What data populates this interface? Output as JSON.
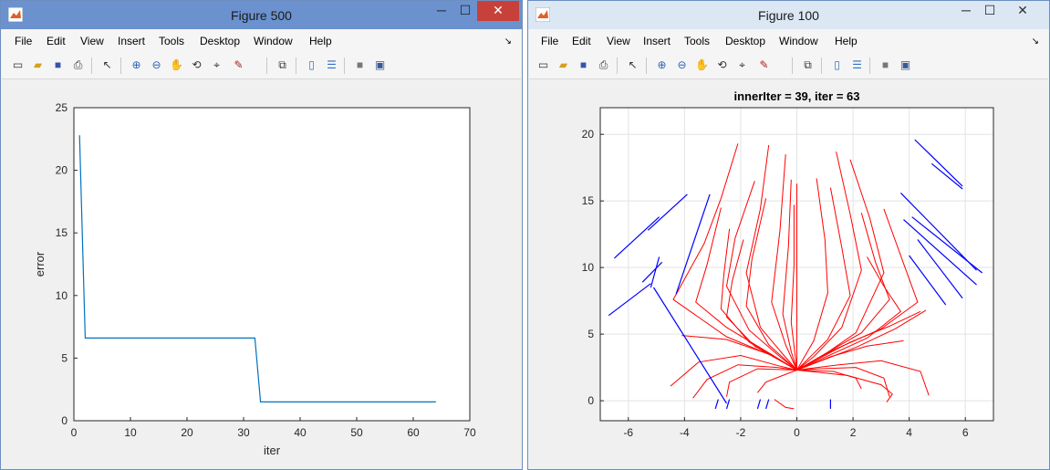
{
  "windows": {
    "left": {
      "title": "Figure 500",
      "menu": [
        "File",
        "Edit",
        "View",
        "Insert",
        "Tools",
        "Desktop",
        "Window",
        "Help"
      ]
    },
    "right": {
      "title": "Figure 100",
      "menu": [
        "File",
        "Edit",
        "View",
        "Insert",
        "Tools",
        "Desktop",
        "Window",
        "Help"
      ]
    }
  },
  "toolbar_icons": [
    "new-figure-icon",
    "open-file-icon",
    "save-icon",
    "print-icon",
    "edit-plot-icon",
    "zoom-in-icon",
    "zoom-out-icon",
    "pan-icon",
    "rotate-3d-icon",
    "data-cursor-icon",
    "brush-icon",
    "link-plot-icon",
    "insert-colorbar-icon",
    "insert-legend-icon",
    "hide-plot-tools-icon",
    "show-plot-tools-icon"
  ],
  "controls": {
    "minimize": "─",
    "maximize": "☐",
    "close": "✕",
    "dock": "↘"
  },
  "colors": {
    "error_line": "#0072bd",
    "red_paths": "#ff0000",
    "blue_segments": "#0000ff",
    "titlebar_active": "#6b92cf",
    "close_button": "#c7413a"
  },
  "chart_data": [
    {
      "type": "line",
      "title": "",
      "xlabel": "iter",
      "ylabel": "error",
      "xlim": [
        0,
        70
      ],
      "ylim": [
        0,
        25
      ],
      "xticks": [
        "0",
        "10",
        "20",
        "30",
        "40",
        "50",
        "60",
        "70"
      ],
      "yticks": [
        "0",
        "5",
        "10",
        "15",
        "20",
        "25"
      ],
      "grid": false,
      "x": [
        1,
        2,
        32,
        33,
        64
      ],
      "y": [
        22.8,
        6.6,
        6.6,
        1.5,
        1.5
      ]
    },
    {
      "type": "line",
      "title": "innerIter = 39, iter = 63",
      "xlabel": "",
      "ylabel": "",
      "xlim": [
        -7,
        7
      ],
      "ylim": [
        -1.5,
        22
      ],
      "xticks": [
        "-6",
        "-4",
        "-2",
        "0",
        "2",
        "4",
        "6"
      ],
      "yticks": [
        "0",
        "5",
        "10",
        "15",
        "20"
      ],
      "grid": true,
      "red_paths": [
        [
          [
            -2.1,
            19.3
          ],
          [
            -2.7,
            15.2
          ],
          [
            -3.3,
            11.8
          ],
          [
            -4.4,
            7.6
          ],
          [
            -2.5,
            4.8
          ],
          [
            -0.9,
            3.4
          ],
          [
            0,
            2.3
          ]
        ],
        [
          [
            -1,
            19.2
          ],
          [
            -1.3,
            14.4
          ],
          [
            -1.8,
            9.6
          ],
          [
            -1.3,
            5.5
          ],
          [
            -0.5,
            3.5
          ],
          [
            0,
            2.3
          ]
        ],
        [
          [
            -0.4,
            18.5
          ],
          [
            -0.6,
            12.8
          ],
          [
            -0.9,
            7.4
          ],
          [
            -0.4,
            4.2
          ],
          [
            0,
            2.3
          ]
        ],
        [
          [
            -0.2,
            16.6
          ],
          [
            -0.3,
            11.6
          ],
          [
            -0.5,
            6.5
          ],
          [
            -0.2,
            3.7
          ],
          [
            0,
            2.3
          ]
        ],
        [
          [
            -0.1,
            14.7
          ],
          [
            -0.1,
            10.2
          ],
          [
            -0.2,
            5.9
          ],
          [
            0,
            2.3
          ]
        ],
        [
          [
            0,
            16.3
          ],
          [
            0,
            11.6
          ],
          [
            0,
            7.2
          ],
          [
            0,
            2.3
          ]
        ],
        [
          [
            1.4,
            18.7
          ],
          [
            1.9,
            14
          ],
          [
            2.3,
            9.8
          ],
          [
            1.6,
            5.5
          ],
          [
            0.6,
            3.3
          ],
          [
            0,
            2.3
          ]
        ],
        [
          [
            1.9,
            18.1
          ],
          [
            2.6,
            13.7
          ],
          [
            3.1,
            9.6
          ],
          [
            2.1,
            5.1
          ],
          [
            0.8,
            3.2
          ],
          [
            0,
            2.3
          ]
        ],
        [
          [
            1.2,
            16
          ],
          [
            1.6,
            11.5
          ],
          [
            1.9,
            7.9
          ],
          [
            1.1,
            4.6
          ],
          [
            0,
            2.3
          ]
        ],
        [
          [
            0.7,
            16.7
          ],
          [
            1,
            12.1
          ],
          [
            1.1,
            8.1
          ],
          [
            0.6,
            4.5
          ],
          [
            0,
            2.3
          ]
        ],
        [
          [
            -1.5,
            16.5
          ],
          [
            -2.2,
            12.2
          ],
          [
            -2.5,
            8.6
          ],
          [
            -1.7,
            5.3
          ],
          [
            -0.6,
            3.3
          ],
          [
            0,
            2.3
          ]
        ],
        [
          [
            -1.1,
            15.2
          ],
          [
            -1.6,
            10.6
          ],
          [
            -1.8,
            7.1
          ],
          [
            -1,
            4.2
          ],
          [
            0,
            2.3
          ]
        ],
        [
          [
            -2.7,
            14.5
          ],
          [
            -3.2,
            10.2
          ],
          [
            -3.6,
            7.4
          ],
          [
            -2.5,
            5.5
          ],
          [
            -1,
            3.6
          ],
          [
            0,
            2.3
          ]
        ],
        [
          [
            -2.4,
            12.9
          ],
          [
            -2.6,
            9.5
          ],
          [
            -2.7,
            6.9
          ],
          [
            -1.7,
            4.4
          ],
          [
            0,
            2.3
          ]
        ],
        [
          [
            -1.9,
            12.1
          ],
          [
            -2.3,
            9
          ],
          [
            -2.5,
            6.3
          ],
          [
            -1.5,
            4.1
          ],
          [
            0,
            2.3
          ]
        ],
        [
          [
            3.1,
            14.4
          ],
          [
            3.8,
            10.3
          ],
          [
            4.3,
            7.4
          ],
          [
            3,
            5.4
          ],
          [
            1.3,
            3.8
          ],
          [
            0,
            2.3
          ]
        ],
        [
          [
            2.3,
            14.1
          ],
          [
            2.8,
            10.4
          ],
          [
            3.3,
            7.6
          ],
          [
            2.3,
            5.1
          ],
          [
            0.9,
            3.4
          ],
          [
            0,
            2.3
          ]
        ],
        [
          [
            2.5,
            10.8
          ],
          [
            3.1,
            8.6
          ],
          [
            3.7,
            6.7
          ],
          [
            2.5,
            4.7
          ],
          [
            0,
            2.3
          ]
        ],
        [
          [
            4.4,
            6.7
          ],
          [
            3.3,
            5.6
          ],
          [
            1.9,
            4.4
          ],
          [
            0,
            2.3
          ]
        ],
        [
          [
            4.6,
            6.8
          ],
          [
            3.5,
            5.4
          ],
          [
            2.1,
            4
          ],
          [
            0,
            2.3
          ]
        ],
        [
          [
            -4.1,
            4.9
          ],
          [
            -2.5,
            4.6
          ],
          [
            -1,
            3.5
          ],
          [
            0,
            2.3
          ]
        ],
        [
          [
            -4.5,
            1.1
          ],
          [
            -3.5,
            2.9
          ],
          [
            -2,
            3.4
          ],
          [
            -0.6,
            2.6
          ],
          [
            0,
            2.3
          ]
        ],
        [
          [
            -3.7,
            0.2
          ],
          [
            -3.2,
            1.6
          ],
          [
            -2.1,
            2.7
          ],
          [
            -0.7,
            2.5
          ],
          [
            0,
            2.3
          ]
        ],
        [
          [
            -2.5,
            0.3
          ],
          [
            -2.4,
            1.4
          ],
          [
            -1.4,
            2.4
          ],
          [
            0,
            2.3
          ]
        ],
        [
          [
            -1.4,
            0.6
          ],
          [
            -1.1,
            1.4
          ],
          [
            -0.5,
            1.9
          ],
          [
            0,
            2.3
          ]
        ],
        [
          [
            4.7,
            0.4
          ],
          [
            4.4,
            2.2
          ],
          [
            3,
            3
          ],
          [
            1.5,
            2.7
          ],
          [
            0,
            2.3
          ]
        ],
        [
          [
            3.3,
            0.3
          ],
          [
            3.1,
            1.7
          ],
          [
            2.1,
            2.5
          ],
          [
            0.8,
            2.4
          ],
          [
            0,
            2.3
          ]
        ],
        [
          [
            2.3,
            0.9
          ],
          [
            2.1,
            1.7
          ],
          [
            1.3,
            2.2
          ],
          [
            0,
            2.3
          ]
        ],
        [
          [
            3.8,
            4.5
          ],
          [
            2.5,
            4.1
          ],
          [
            1.2,
            3.3
          ],
          [
            0,
            2.3
          ]
        ],
        [
          [
            -0.8,
            0.1
          ],
          [
            -0.4,
            -0.5
          ],
          [
            -0.1,
            -0.6
          ]
        ],
        [
          [
            3.2,
            -0.1
          ],
          [
            3.4,
            0.5
          ],
          [
            3,
            1.2
          ],
          [
            1.8,
            1.9
          ],
          [
            0,
            2.3
          ]
        ]
      ],
      "blue_segments": [
        [
          [
            -6.7,
            6.4
          ],
          [
            -5.2,
            8.8
          ]
        ],
        [
          [
            -6.5,
            10.7
          ],
          [
            -4.9,
            13.8
          ]
        ],
        [
          [
            -5.3,
            12.8
          ],
          [
            -3.9,
            15.5
          ]
        ],
        [
          [
            -5.5,
            8.9
          ],
          [
            -4.8,
            10.4
          ]
        ],
        [
          [
            -4.3,
            8
          ],
          [
            -3.1,
            15.5
          ]
        ],
        [
          [
            -5.1,
            8.5
          ],
          [
            -2.5,
            -0.2
          ]
        ],
        [
          [
            -5.2,
            8.5
          ],
          [
            -4.9,
            10.8
          ]
        ],
        [
          [
            4.2,
            19.6
          ],
          [
            5.9,
            16.1
          ]
        ],
        [
          [
            4.8,
            17.8
          ],
          [
            5.9,
            15.9
          ]
        ],
        [
          [
            3.7,
            15.6
          ],
          [
            6.4,
            9.8
          ]
        ],
        [
          [
            3.8,
            13.6
          ],
          [
            6.4,
            8.7
          ]
        ],
        [
          [
            4.1,
            13.8
          ],
          [
            6.6,
            9.6
          ]
        ],
        [
          [
            4.3,
            12.1
          ],
          [
            5.9,
            7.7
          ]
        ],
        [
          [
            4,
            10.9
          ],
          [
            5.3,
            7.2
          ]
        ],
        [
          [
            -2.9,
            -0.6
          ],
          [
            -2.8,
            0.1
          ]
        ],
        [
          [
            -2.5,
            -0.6
          ],
          [
            -2.4,
            0.1
          ]
        ],
        [
          [
            -1.4,
            -0.6
          ],
          [
            -1.3,
            0.1
          ]
        ],
        [
          [
            -1.1,
            -0.6
          ],
          [
            -1,
            0.1
          ]
        ],
        [
          [
            1.2,
            -0.6
          ],
          [
            1.2,
            0.1
          ]
        ]
      ]
    }
  ]
}
